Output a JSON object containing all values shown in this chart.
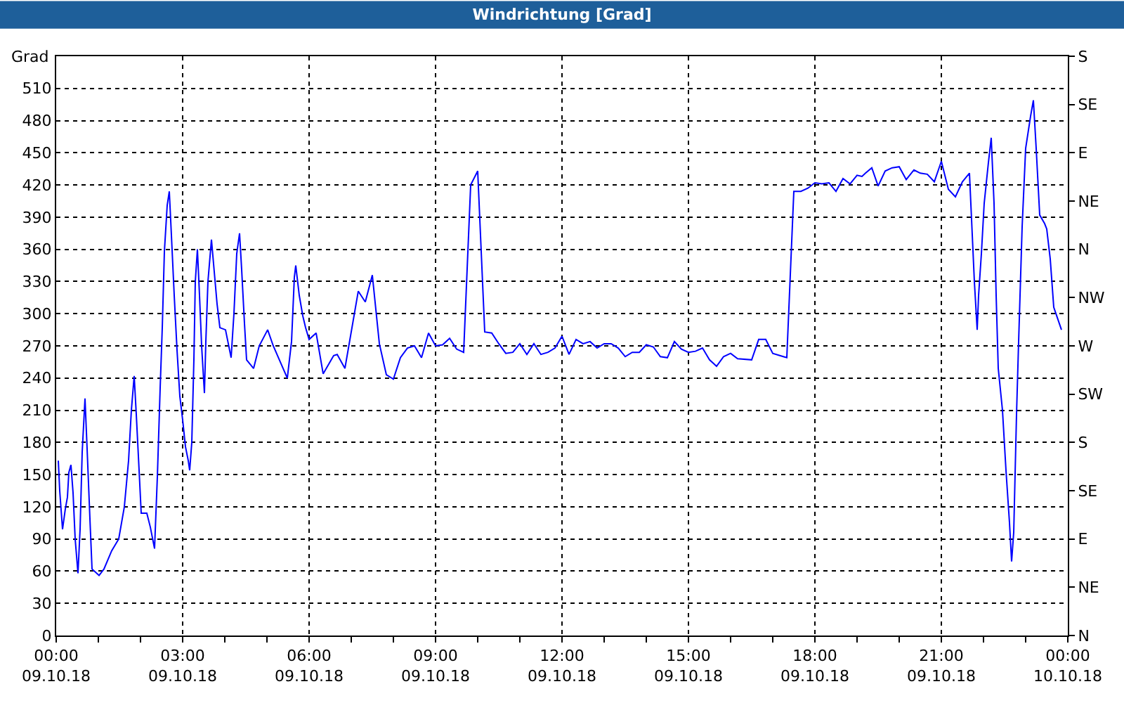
{
  "chart_data": {
    "type": "line",
    "title": "Windrichtung [Grad]",
    "ylabel": "Grad",
    "x": [
      "--10-09T00:03",
      "--10-09T00:05",
      "--10-09T00:09",
      "--10-09T00:13",
      "--10-09T00:16",
      "--10-09T00:18",
      "--10-09T00:21",
      "--10-09T00:24",
      "--10-09T00:27",
      "--10-09T00:31",
      "--10-09T00:34",
      "--10-09T00:37",
      "--10-09T00:41",
      "--10-09T00:44",
      "--10-09T00:48",
      "--10-09T00:51",
      "--10-09T01:01",
      "--10-09T01:08",
      "--10-09T01:19",
      "--10-09T01:29",
      "--10-09T01:37",
      "--10-09T01:43",
      "--10-09T01:47",
      "--10-09T01:51",
      "--10-09T01:54",
      "--10-09T01:58",
      "--10-09T02:01",
      "--10-09T02:09",
      "--10-09T02:14",
      "--10-09T02:20",
      "--10-09T02:24",
      "--10-09T02:28",
      "--10-09T02:31",
      "--10-09T02:34",
      "--10-09T02:38",
      "--10-09T02:41",
      "--10-09T02:44",
      "--10-09T02:48",
      "--10-09T02:52",
      "--10-09T02:56",
      "--10-09T03:00",
      "--10-09T03:04",
      "--10-09T03:08",
      "--10-09T03:10",
      "--10-09T03:13",
      "--10-09T03:16",
      "--10-09T03:18",
      "--10-09T03:21",
      "--10-09T03:24",
      "--10-09T03:27",
      "--10-09T03:31",
      "--10-09T03:33",
      "--10-09T03:36",
      "--10-09T03:41",
      "--10-09T03:45",
      "--10-09T03:49",
      "--10-09T03:53",
      "--10-09T04:01",
      "--10-09T04:09",
      "--10-09T04:13",
      "--10-09T04:17",
      "--10-09T04:21",
      "--10-09T04:24",
      "--10-09T04:28",
      "--10-09T04:31",
      "--10-09T04:41",
      "--10-09T04:49",
      "--10-09T05:01",
      "--10-09T05:09",
      "--10-09T05:29",
      "--10-09T05:35",
      "--10-09T05:39",
      "--10-09T05:41",
      "--10-09T05:46",
      "--10-09T05:51",
      "--10-09T05:55",
      "--10-09T06:00",
      "--10-09T06:10",
      "--10-09T06:20",
      "--10-09T06:35",
      "--10-09T06:40",
      "--10-09T06:51",
      "--10-09T07:10",
      "--10-09T07:20",
      "--10-09T07:30",
      "--10-09T07:40",
      "--10-09T07:50",
      "--10-09T08:00",
      "--10-09T08:10",
      "--10-09T08:20",
      "--10-09T08:30",
      "--10-09T08:40",
      "--10-09T08:50",
      "--10-09T09:00",
      "--10-09T09:10",
      "--10-09T09:20",
      "--10-09T09:30",
      "--10-09T09:40",
      "--10-09T09:50",
      "--10-09T10:00",
      "--10-09T10:10",
      "--10-09T10:20",
      "--10-09T10:30",
      "--10-09T10:40",
      "--10-09T10:50",
      "--10-09T11:00",
      "--10-09T11:10",
      "--10-09T11:20",
      "--10-09T11:30",
      "--10-09T11:40",
      "--10-09T11:50",
      "--10-09T12:00",
      "--10-09T12:10",
      "--10-09T12:20",
      "--10-09T12:30",
      "--10-09T12:40",
      "--10-09T12:50",
      "--10-09T13:00",
      "--10-09T13:10",
      "--10-09T13:20",
      "--10-09T13:30",
      "--10-09T13:40",
      "--10-09T13:50",
      "--10-09T14:00",
      "--10-09T14:10",
      "--10-09T14:20",
      "--10-09T14:30",
      "--10-09T14:40",
      "--10-09T14:50",
      "--10-09T15:00",
      "--10-09T15:10",
      "--10-09T15:20",
      "--10-09T15:30",
      "--10-09T15:40",
      "--10-09T15:50",
      "--10-09T16:00",
      "--10-09T16:10",
      "--10-09T16:30",
      "--10-09T16:40",
      "--10-09T16:50",
      "--10-09T17:00",
      "--10-09T17:10",
      "--10-09T17:20",
      "--10-09T17:30",
      "--10-09T17:40",
      "--10-09T17:50",
      "--10-09T18:00",
      "--10-09T18:10",
      "--10-09T18:20",
      "--10-09T18:30",
      "--10-09T18:40",
      "--10-09T18:50",
      "--10-09T19:00",
      "--10-09T19:07",
      "--10-09T19:12",
      "--10-09T19:21",
      "--10-09T19:30",
      "--10-09T19:40",
      "--10-09T19:50",
      "--10-09T20:00",
      "--10-09T20:10",
      "--10-09T20:21",
      "--10-09T20:30",
      "--10-09T20:40",
      "--10-09T20:50",
      "--10-09T21:00",
      "--10-09T21:10",
      "--10-09T21:20",
      "--10-09T21:30",
      "--10-09T21:40",
      "--10-09T21:43",
      "--10-09T21:47",
      "--10-09T21:51",
      "--10-09T21:53",
      "--10-09T21:57",
      "--10-09T22:01",
      "--10-09T22:07",
      "--10-09T22:11",
      "--10-09T22:15",
      "--10-09T22:18",
      "--10-09T22:21",
      "--10-09T22:27",
      "--10-09T22:32",
      "--10-09T22:37",
      "--10-09T22:40",
      "--10-09T22:43",
      "--10-09T22:47",
      "--10-09T22:50",
      "--10-09T22:55",
      "--10-09T23:00",
      "--10-09T23:07",
      "--10-09T23:11",
      "--10-09T23:15",
      "--10-09T23:20",
      "--10-09T23:27",
      "--10-09T23:30",
      "--10-09T23:35",
      "--10-09T23:40",
      "--10-09T23:51"
    ],
    "series": [
      {
        "color": "#0000ff",
        "values": [
          163,
          135,
          99,
          118,
          129,
          152,
          159,
          133,
          90,
          58,
          99,
          171,
          221,
          174,
          109,
          62,
          56,
          62,
          79,
          90,
          120,
          163,
          210,
          242,
          206,
          154,
          114,
          114,
          101,
          81,
          148,
          231,
          287,
          358,
          401,
          414,
          373,
          317,
          266,
          223,
          201,
          176,
          163,
          154,
          180,
          257,
          330,
          360,
          317,
          270,
          226,
          274,
          330,
          369,
          339,
          309,
          287,
          285,
          259,
          300,
          356,
          375,
          341,
          291,
          257,
          249,
          270,
          285,
          270,
          240,
          274,
          334,
          345,
          317,
          298,
          287,
          276,
          282,
          244,
          261,
          262,
          249,
          321,
          311,
          336,
          272,
          243,
          239,
          259,
          268,
          270,
          259,
          282,
          270,
          271,
          277,
          267,
          264,
          420,
          433,
          283,
          282,
          272,
          263,
          264,
          272,
          262,
          272,
          262,
          264,
          268,
          279,
          262,
          276,
          272,
          274,
          268,
          272,
          272,
          268,
          260,
          264,
          264,
          271,
          269,
          260,
          259,
          274,
          267,
          264,
          265,
          268,
          257,
          251,
          260,
          263,
          258,
          257,
          276,
          276,
          263,
          261,
          259,
          414,
          414,
          417,
          422,
          421,
          422,
          414,
          426,
          421,
          429,
          428,
          431,
          436,
          419,
          433,
          436,
          437,
          425,
          434,
          431,
          430,
          423,
          442,
          416,
          409,
          423,
          431,
          388,
          330,
          285,
          317,
          356,
          403,
          441,
          464,
          403,
          317,
          249,
          210,
          154,
          105,
          69,
          96,
          206,
          274,
          381,
          454,
          484,
          499,
          454,
          392,
          384,
          379,
          351,
          306,
          285
        ]
      }
    ],
    "xlim": [
      "--10-09T00:00",
      "--10-10T00:00"
    ],
    "xticks": [
      {
        "value": "--10-09T00:00",
        "label": "00:00\n09.10.18"
      },
      {
        "value": "--10-09T01:00",
        "label": null
      },
      {
        "value": "--10-09T02:00",
        "label": null
      },
      {
        "value": "--10-09T03:00",
        "label": "03:00\n09.10.18"
      },
      {
        "value": "--10-09T04:00",
        "label": null
      },
      {
        "value": "--10-09T05:00",
        "label": null
      },
      {
        "value": "--10-09T06:00",
        "label": "06:00\n09.10.18"
      },
      {
        "value": "--10-09T07:00",
        "label": null
      },
      {
        "value": "--10-09T08:00",
        "label": null
      },
      {
        "value": "--10-09T09:00",
        "label": "09:00\n09.10.18"
      },
      {
        "value": "--10-09T10:00",
        "label": null
      },
      {
        "value": "--10-09T11:00",
        "label": null
      },
      {
        "value": "--10-09T12:00",
        "label": "12:00\n09.10.18"
      },
      {
        "value": "--10-09T13:00",
        "label": null
      },
      {
        "value": "--10-09T14:00",
        "label": null
      },
      {
        "value": "--10-09T15:00",
        "label": "15:00\n09.10.18"
      },
      {
        "value": "--10-09T16:00",
        "label": null
      },
      {
        "value": "--10-09T17:00",
        "label": null
      },
      {
        "value": "--10-09T18:00",
        "label": "18:00\n09.10.18"
      },
      {
        "value": "--10-09T19:00",
        "label": null
      },
      {
        "value": "--10-09T20:00",
        "label": null
      },
      {
        "value": "--10-09T21:00",
        "label": "21:00\n09.10.18"
      },
      {
        "value": "--10-09T22:00",
        "label": null
      },
      {
        "value": "--10-09T23:00",
        "label": null
      },
      {
        "value": "--10-10T00:00",
        "label": "00:00\n10.10.18"
      }
    ],
    "ylim": [
      0,
      540
    ],
    "yticks": [
      0,
      30,
      60,
      90,
      120,
      150,
      180,
      210,
      240,
      270,
      300,
      330,
      360,
      390,
      420,
      450,
      480,
      510
    ],
    "y2_categories": [
      "S",
      "SE",
      "E",
      "NE",
      "N",
      "NW",
      "W",
      "SW",
      "S",
      "SE",
      "E",
      "NE",
      "N"
    ],
    "grid": true
  }
}
